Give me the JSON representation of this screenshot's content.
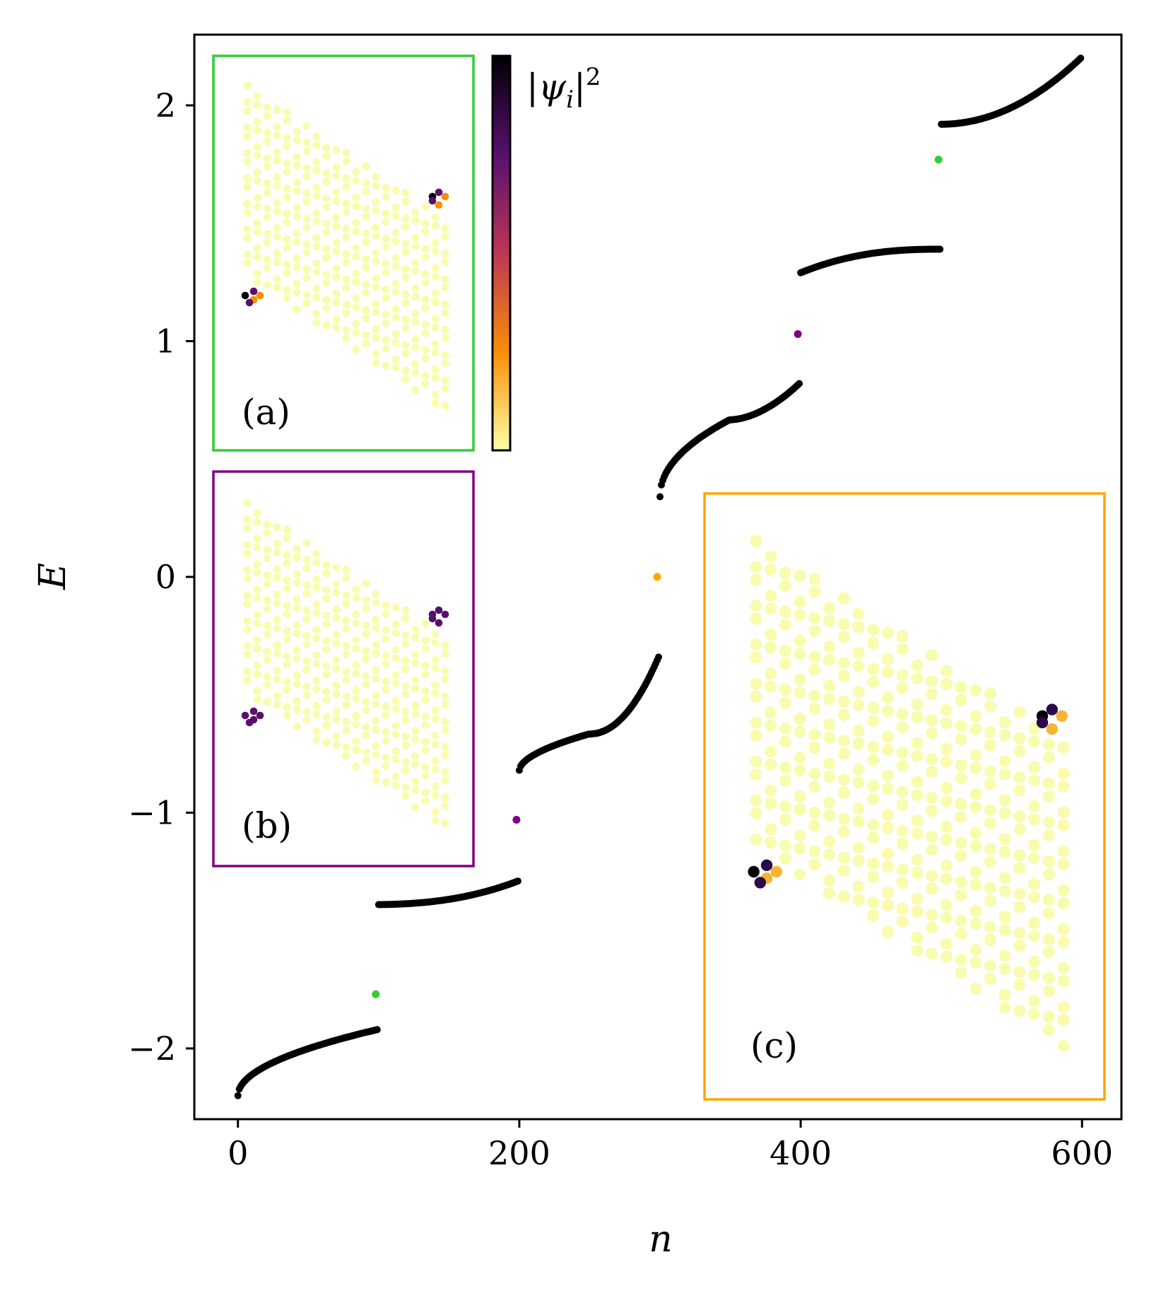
{
  "chart_data": {
    "type": "scatter",
    "xlabel": "n",
    "ylabel": "E",
    "xlim": [
      -31,
      628
    ],
    "ylim": [
      -2.3,
      2.3
    ],
    "xticks": [
      0,
      200,
      400,
      600
    ],
    "yticks": [
      -2,
      -1,
      0,
      1,
      2
    ],
    "xtick_labels": [
      "0",
      "200",
      "400",
      "600"
    ],
    "ytick_labels": [
      "−2",
      "−1",
      "0",
      "1",
      "2"
    ],
    "grid": false,
    "marker_color": "#000000",
    "bands": [
      {
        "n": [
          0,
          99
        ],
        "E": [
          -2.2,
          -1.92
        ]
      },
      {
        "n": [
          100,
          199
        ],
        "E": [
          -1.39,
          -1.29
        ]
      },
      {
        "n": [
          200,
          299
        ],
        "E": [
          -0.82,
          -0.34
        ]
      },
      {
        "n": [
          300,
          399
        ],
        "E": [
          0.34,
          0.82
        ]
      },
      {
        "n": [
          400,
          499
        ],
        "E": [
          1.29,
          1.39
        ]
      },
      {
        "n": [
          500,
          599
        ],
        "E": [
          1.92,
          2.2
        ]
      }
    ],
    "gap_states": [
      {
        "n": 98,
        "E": -1.77,
        "color": "#32cd32",
        "panel": "a"
      },
      {
        "n": 198,
        "E": -1.03,
        "color": "#800080",
        "panel": "b"
      },
      {
        "n": 298,
        "E": 0.0,
        "color": "#ffa500",
        "panel": "c"
      },
      {
        "n": 398,
        "E": 1.03,
        "color": "#800080",
        "panel": "b"
      },
      {
        "n": 498,
        "E": 1.77,
        "color": "#32cd32",
        "panel": "a"
      }
    ],
    "colorbar": {
      "label": "|ψ_i|²",
      "colormap": "inferno_r",
      "colors": [
        "#fcffa4",
        "#f98e09",
        "#bc3754",
        "#57106e",
        "#000004"
      ]
    },
    "insets": [
      {
        "label": "(a)",
        "frame_color": "#32cd32"
      },
      {
        "label": "(b)",
        "frame_color": "#800080"
      },
      {
        "label": "(c)",
        "frame_color": "#ffa500"
      }
    ]
  }
}
